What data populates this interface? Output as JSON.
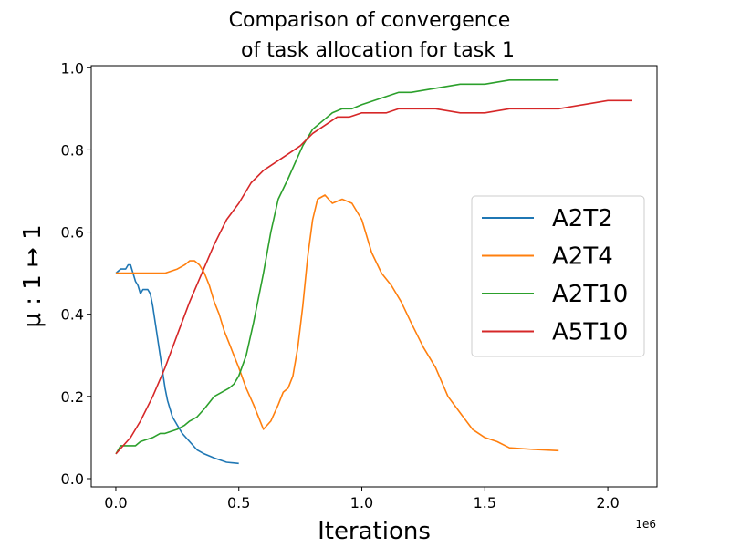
{
  "chart_data": {
    "type": "line",
    "title_line1": "Comparison of convergence",
    "title_line2": "of task allocation for task 1",
    "xlabel": "Iterations",
    "ylabel": "μ : 1 ↦ 1",
    "x_offset_label": "1e6",
    "xlim": [
      -0.1,
      2.2
    ],
    "ylim": [
      -0.02,
      1.005
    ],
    "x_ticks": [
      0.0,
      0.5,
      1.0,
      1.5,
      2.0
    ],
    "x_tick_labels": [
      "0.0",
      "0.5",
      "1.0",
      "1.5",
      "2.0"
    ],
    "y_ticks": [
      0.0,
      0.2,
      0.4,
      0.6,
      0.8,
      1.0
    ],
    "y_tick_labels": [
      "0.0",
      "0.2",
      "0.4",
      "0.6",
      "0.8",
      "1.0"
    ],
    "grid": false,
    "legend_position": "center-right",
    "series": [
      {
        "name": "A2T2",
        "color": "#1f77b4",
        "x": [
          0.0,
          0.02,
          0.04,
          0.05,
          0.06,
          0.07,
          0.08,
          0.09,
          0.1,
          0.11,
          0.12,
          0.13,
          0.14,
          0.15,
          0.16,
          0.17,
          0.18,
          0.19,
          0.2,
          0.21,
          0.22,
          0.23,
          0.24,
          0.25,
          0.27,
          0.3,
          0.33,
          0.36,
          0.4,
          0.45,
          0.5
        ],
        "y": [
          0.5,
          0.51,
          0.51,
          0.52,
          0.52,
          0.5,
          0.48,
          0.47,
          0.45,
          0.46,
          0.46,
          0.46,
          0.45,
          0.42,
          0.38,
          0.34,
          0.3,
          0.26,
          0.22,
          0.19,
          0.17,
          0.15,
          0.14,
          0.13,
          0.11,
          0.09,
          0.07,
          0.06,
          0.05,
          0.04,
          0.037
        ]
      },
      {
        "name": "A2T4",
        "color": "#ff7f0e",
        "x": [
          0.0,
          0.05,
          0.1,
          0.15,
          0.2,
          0.25,
          0.28,
          0.3,
          0.32,
          0.34,
          0.36,
          0.38,
          0.4,
          0.42,
          0.44,
          0.46,
          0.48,
          0.5,
          0.53,
          0.56,
          0.6,
          0.63,
          0.66,
          0.68,
          0.7,
          0.72,
          0.74,
          0.76,
          0.78,
          0.8,
          0.82,
          0.85,
          0.88,
          0.92,
          0.96,
          1.0,
          1.04,
          1.08,
          1.12,
          1.16,
          1.2,
          1.25,
          1.3,
          1.35,
          1.4,
          1.45,
          1.5,
          1.55,
          1.6,
          1.7,
          1.8
        ],
        "y": [
          0.5,
          0.5,
          0.5,
          0.5,
          0.5,
          0.51,
          0.52,
          0.53,
          0.53,
          0.52,
          0.5,
          0.47,
          0.43,
          0.4,
          0.36,
          0.33,
          0.3,
          0.27,
          0.22,
          0.18,
          0.12,
          0.14,
          0.18,
          0.21,
          0.22,
          0.25,
          0.32,
          0.42,
          0.54,
          0.63,
          0.68,
          0.69,
          0.67,
          0.68,
          0.67,
          0.63,
          0.55,
          0.5,
          0.47,
          0.43,
          0.38,
          0.32,
          0.27,
          0.2,
          0.16,
          0.12,
          0.1,
          0.09,
          0.075,
          0.071,
          0.068
        ]
      },
      {
        "name": "A2T10",
        "color": "#2ca02c",
        "x": [
          0.0,
          0.02,
          0.05,
          0.08,
          0.1,
          0.15,
          0.18,
          0.2,
          0.25,
          0.28,
          0.3,
          0.33,
          0.36,
          0.4,
          0.43,
          0.46,
          0.48,
          0.5,
          0.53,
          0.56,
          0.6,
          0.63,
          0.66,
          0.7,
          0.73,
          0.76,
          0.8,
          0.84,
          0.88,
          0.92,
          0.96,
          1.0,
          1.05,
          1.1,
          1.15,
          1.2,
          1.3,
          1.4,
          1.5,
          1.6,
          1.7,
          1.8
        ],
        "y": [
          0.06,
          0.08,
          0.08,
          0.08,
          0.09,
          0.1,
          0.11,
          0.11,
          0.12,
          0.13,
          0.14,
          0.15,
          0.17,
          0.2,
          0.21,
          0.22,
          0.23,
          0.25,
          0.3,
          0.38,
          0.5,
          0.6,
          0.68,
          0.73,
          0.77,
          0.81,
          0.85,
          0.87,
          0.89,
          0.9,
          0.9,
          0.91,
          0.92,
          0.93,
          0.94,
          0.94,
          0.95,
          0.96,
          0.96,
          0.97,
          0.97,
          0.97
        ]
      },
      {
        "name": "A5T10",
        "color": "#d62728",
        "x": [
          0.0,
          0.03,
          0.06,
          0.1,
          0.15,
          0.2,
          0.25,
          0.3,
          0.35,
          0.4,
          0.45,
          0.5,
          0.55,
          0.6,
          0.65,
          0.7,
          0.75,
          0.8,
          0.85,
          0.9,
          0.95,
          1.0,
          1.05,
          1.1,
          1.15,
          1.2,
          1.3,
          1.4,
          1.5,
          1.6,
          1.7,
          1.8,
          1.9,
          2.0,
          2.1
        ],
        "y": [
          0.06,
          0.08,
          0.1,
          0.14,
          0.2,
          0.27,
          0.35,
          0.43,
          0.5,
          0.57,
          0.63,
          0.67,
          0.72,
          0.75,
          0.77,
          0.79,
          0.81,
          0.84,
          0.86,
          0.88,
          0.88,
          0.89,
          0.89,
          0.89,
          0.9,
          0.9,
          0.9,
          0.89,
          0.89,
          0.9,
          0.9,
          0.9,
          0.91,
          0.92,
          0.92
        ]
      }
    ]
  }
}
